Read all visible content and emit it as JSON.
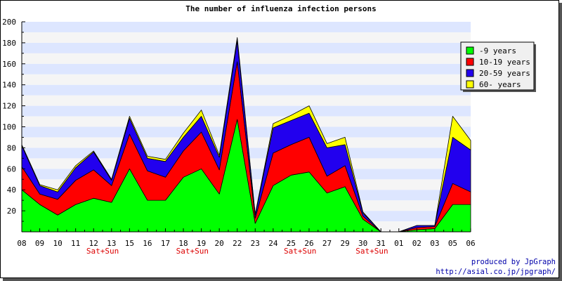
{
  "chart_data": {
    "type": "area",
    "stacked": true,
    "title": "The number of influenza infection persons",
    "xlabel": "",
    "ylabel": "",
    "ylim": [
      0,
      200
    ],
    "yticks": [
      20,
      40,
      60,
      80,
      100,
      120,
      140,
      160,
      180,
      200
    ],
    "grid": true,
    "band_colors": [
      "#f5f5f5",
      "#dde6ff"
    ],
    "legend_position": "top-right",
    "categories": [
      "08",
      "09",
      "10",
      "11",
      "12",
      "13",
      "15",
      "16",
      "17",
      "18",
      "19",
      "20",
      "22",
      "23",
      "24",
      "25",
      "26",
      "27",
      "29",
      "30",
      "31",
      "01",
      "02",
      "03",
      "05",
      "06"
    ],
    "weekend_label": "Sat+Sun",
    "weekend_after": [
      "12",
      "18",
      "25",
      "30"
    ],
    "series": [
      {
        "name": "-9 years",
        "color": "#00ff00",
        "values": [
          40,
          26,
          16,
          26,
          32,
          28,
          60,
          30,
          30,
          52,
          60,
          36,
          107,
          8,
          44,
          54,
          57,
          37,
          43,
          12,
          0,
          0,
          2,
          3,
          26,
          26
        ]
      },
      {
        "name": "10-19 years",
        "color": "#ff0000",
        "values": [
          22,
          10,
          15,
          23,
          27,
          16,
          33,
          28,
          22,
          25,
          35,
          23,
          55,
          5,
          31,
          29,
          33,
          16,
          20,
          3,
          0,
          0,
          2,
          2,
          20,
          12
        ]
      },
      {
        "name": "20-59 years",
        "color": "#2200ee",
        "values": [
          20,
          8,
          7,
          12,
          17,
          5,
          15,
          12,
          15,
          13,
          15,
          12,
          20,
          3,
          24,
          23,
          23,
          27,
          20,
          3,
          0,
          0,
          2,
          1,
          44,
          40
        ]
      },
      {
        "name": "60- years",
        "color": "#ffff00",
        "values": [
          1,
          1,
          2,
          2,
          1,
          1,
          2,
          2,
          2,
          4,
          6,
          2,
          3,
          1,
          4,
          5,
          7,
          4,
          7,
          1,
          0,
          0,
          0,
          0,
          20,
          9
        ]
      }
    ],
    "credit_line1": "produced by JpGraph",
    "credit_line2": "http://asial.co.jp/jpgraph/"
  }
}
